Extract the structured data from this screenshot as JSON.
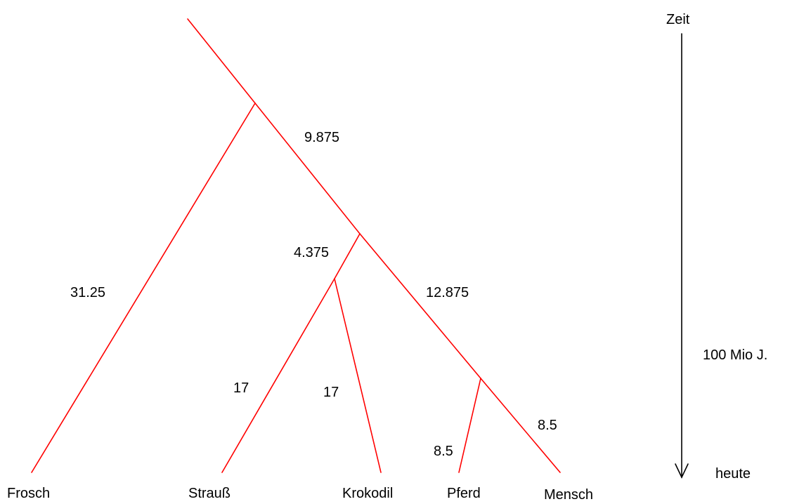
{
  "taxa": {
    "frosch": "Frosch",
    "strauss": "Strauß",
    "krokodil": "Krokodil",
    "pferd": "Pferd",
    "mensch": "Mensch"
  },
  "branch_lengths": {
    "root_to_node_b": "9.875",
    "frosch": "31.25",
    "node_b_to_node_c": "4.375",
    "node_b_to_node_d": "12.875",
    "strauss": "17",
    "krokodil": "17",
    "pferd": "8.5",
    "mensch": "8.5"
  },
  "time_axis": {
    "top_label": "Zeit",
    "scale_label": "100 Mio J.",
    "bottom_label": "heute"
  },
  "colors": {
    "branch": "#ff0000",
    "axis": "#000000",
    "text": "#000000"
  }
}
